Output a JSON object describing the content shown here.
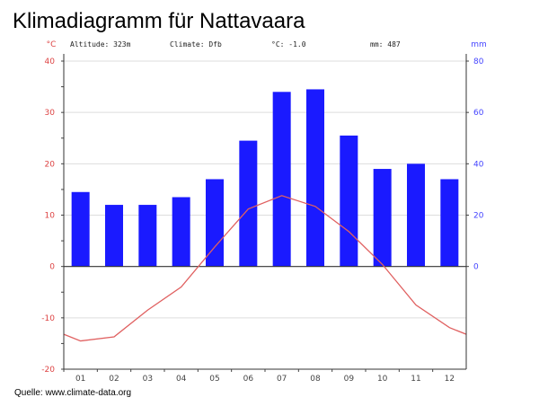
{
  "title": "Klimadiagramm für Nattavaara",
  "source": "Quelle: www.climate-data.org",
  "chart_data": {
    "type": "bar+line",
    "title": "Klimadiagramm für Nattavaara",
    "info": {
      "altitude": "Altitude: 323m",
      "climate": "Climate: Dfb",
      "temp_mean": "°C: -1.0",
      "precip_total": "mm: 487"
    },
    "categories": [
      "01",
      "02",
      "03",
      "04",
      "05",
      "06",
      "07",
      "08",
      "09",
      "10",
      "11",
      "12"
    ],
    "series": [
      {
        "name": "Precipitation (mm)",
        "type": "bar",
        "axis": "right",
        "color": "#1a1aff",
        "values": [
          29,
          24,
          24,
          27,
          34,
          49,
          68,
          69,
          51,
          38,
          40,
          34
        ]
      },
      {
        "name": "Temperature (°C)",
        "type": "line",
        "axis": "left",
        "color": "#e06060",
        "values": [
          -14.5,
          -13.7,
          -8.5,
          -4.0,
          3.8,
          11.2,
          13.8,
          11.7,
          6.8,
          0.4,
          -7.5,
          -11.9
        ]
      }
    ],
    "left_axis": {
      "label": "°C",
      "ylim": [
        -20,
        40
      ],
      "ticks": [
        "40",
        "30",
        "20",
        "10",
        "0",
        "-10",
        "-20"
      ],
      "color": "#dd4444"
    },
    "right_axis": {
      "label": "mm",
      "ylim": [
        0,
        80
      ],
      "ticks": [
        "80",
        "60",
        "40",
        "20",
        "0"
      ],
      "color": "#4444ff"
    },
    "grid": true
  }
}
